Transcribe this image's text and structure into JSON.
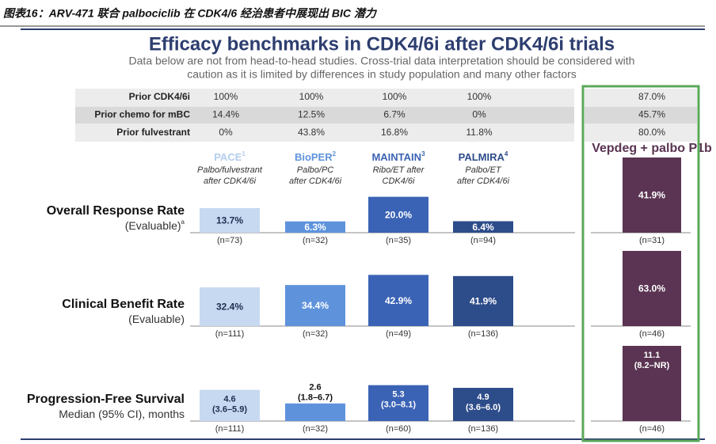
{
  "caption": "图表16：ARV-471 联合 palbociclib 在 CDK4/6 经治患者中展现出 BIC 潜力",
  "title": "Efficacy benchmarks in CDK4/6i after CDK4/6i trials",
  "subtitle": [
    "Data below are not from head-to-head studies. Cross-trial data interpretation should be considered with",
    "caution as it is limited by differences in study population and many other factors"
  ],
  "prior_rows": [
    {
      "label": "Prior CDK4/6i",
      "values": [
        "100%",
        "100%",
        "100%",
        "100%",
        "87.0%"
      ]
    },
    {
      "label": "Prior chemo for mBC",
      "values": [
        "14.4%",
        "12.5%",
        "6.7%",
        "0%",
        "45.7%"
      ]
    },
    {
      "label": "Prior fulvestrant",
      "values": [
        "0%",
        "43.8%",
        "16.8%",
        "11.8%",
        "80.0%"
      ]
    }
  ],
  "studies": [
    {
      "name": "PACE",
      "sup": "1",
      "desc": [
        "Palbo/fulvestrant",
        "after CDK4/6i"
      ],
      "color": "#c6d9f1",
      "text_color": "#b3cdee"
    },
    {
      "name": "BioPER",
      "sup": "2",
      "desc": [
        "Palbo/PC",
        "after CDK4/6i"
      ],
      "color": "#5e93dc",
      "text_color": "#5e93dc"
    },
    {
      "name": "MAINTAIN",
      "sup": "3",
      "desc": [
        "Ribo/ET after",
        "CDK4/6i"
      ],
      "color": "#3b63b5",
      "text_color": "#3b63b5"
    },
    {
      "name": "PALMIRA",
      "sup": "4",
      "desc": [
        "Palbo/ET",
        "after CDK4/6i"
      ],
      "color": "#2d4c8a",
      "text_color": "#2d4c8a"
    },
    {
      "name": "Vepdeg + palbo P1b",
      "color": "#5a3452",
      "text_color": "#5a3452"
    }
  ],
  "metrics": [
    {
      "label": "Overall Response Rate",
      "sublabel": "(Evaluable)",
      "sup": "a",
      "values": [
        13.7,
        6.3,
        20.0,
        6.4,
        41.9
      ],
      "value_labels": [
        "13.7%",
        "6.3%",
        "20.0%",
        "6.4%",
        "41.9%"
      ],
      "n": [
        "(n=73)",
        "(n=32)",
        "(n=35)",
        "(n=94)",
        "(n=31)"
      ]
    },
    {
      "label": "Clinical Benefit Rate",
      "sublabel": "(Evaluable)",
      "values": [
        32.4,
        34.4,
        42.9,
        41.9,
        63.0
      ],
      "value_labels": [
        "32.4%",
        "34.4%",
        "42.9%",
        "41.9%",
        "63.0%"
      ],
      "n": [
        "(n=111)",
        "(n=32)",
        "(n=49)",
        "(n=136)",
        "(n=46)"
      ]
    },
    {
      "label": "Progression-Free Survival",
      "sublabel": "Median (95% CI), months",
      "values": [
        4.6,
        2.6,
        5.3,
        4.9,
        11.1
      ],
      "ci": [
        "(3.6–5.9)",
        "(1.8–6.7)",
        "(3.0–8.1)",
        "(3.6–6.0)",
        "(8.2–NR)"
      ],
      "n": [
        "(n=111)",
        "(n=32)",
        "(n=60)",
        "(n=136)",
        "(n=46)"
      ]
    }
  ]
}
